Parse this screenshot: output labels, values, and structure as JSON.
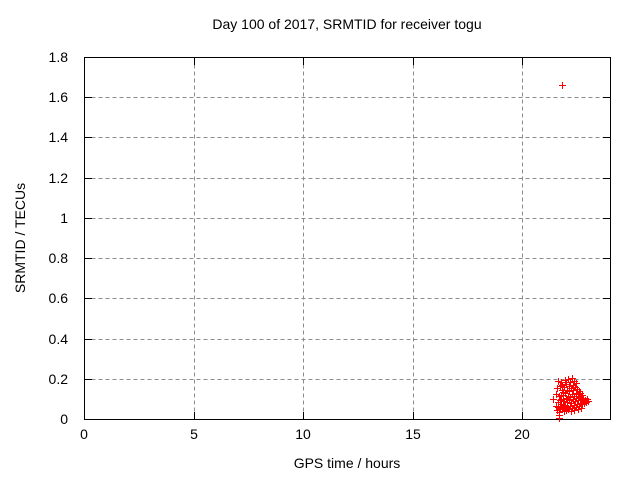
{
  "chart_data": {
    "type": "scatter",
    "title": "Day 100 of 2017, SRMTID for receiver togu",
    "xlabel": "GPS time / hours",
    "ylabel": "SRMTID / TECUs",
    "xlim": [
      0,
      24
    ],
    "ylim": [
      0,
      1.8
    ],
    "xticks": [
      0,
      5,
      10,
      15,
      20
    ],
    "xtick_labels": [
      "0",
      "5",
      "10",
      "15",
      "20"
    ],
    "yticks": [
      0,
      0.2,
      0.4,
      0.6,
      0.8,
      1,
      1.2,
      1.4,
      1.6,
      1.8
    ],
    "ytick_labels": [
      "0",
      "0.2",
      "0.4",
      "0.6",
      "0.8",
      "1",
      "1.2",
      "1.4",
      "1.6",
      "1.8"
    ],
    "grid": true,
    "legend": "none",
    "colors": {
      "marker": "#ff0000",
      "grid": "#8c8c8c",
      "border": "#000000",
      "text": "#000000",
      "background": "#ffffff"
    },
    "series": [
      {
        "name": "SRMTID",
        "marker": "plus",
        "color": "#ff0000",
        "points": [
          [
            21.42,
            0.1
          ],
          [
            21.52,
            0.065
          ],
          [
            21.55,
            0.125
          ],
          [
            21.57,
            0.045
          ],
          [
            21.6,
            0.155
          ],
          [
            21.62,
            0.085
          ],
          [
            21.64,
            0.19
          ],
          [
            21.65,
            0.06
          ],
          [
            21.67,
            0.115
          ],
          [
            21.69,
            0.035
          ],
          [
            21.7,
            0.165
          ],
          [
            21.72,
            0.095
          ],
          [
            21.74,
            0.055
          ],
          [
            21.75,
            0.185
          ],
          [
            21.77,
            0.12
          ],
          [
            21.78,
            0.075
          ],
          [
            21.8,
            0.145
          ],
          [
            21.81,
            0.05
          ],
          [
            21.83,
            0.17
          ],
          [
            21.84,
            0.1
          ],
          [
            21.86,
            0.065
          ],
          [
            21.87,
            0.135
          ],
          [
            21.89,
            0.04
          ],
          [
            21.9,
            0.16
          ],
          [
            21.92,
            0.09
          ],
          [
            21.93,
            0.195
          ],
          [
            21.95,
            0.07
          ],
          [
            21.96,
            0.13
          ],
          [
            21.98,
            0.045
          ],
          [
            21.99,
            0.175
          ],
          [
            22.01,
            0.105
          ],
          [
            22.02,
            0.06
          ],
          [
            22.04,
            0.145
          ],
          [
            22.05,
            0.085
          ],
          [
            22.07,
            0.2
          ],
          [
            22.08,
            0.115
          ],
          [
            22.1,
            0.05
          ],
          [
            22.11,
            0.165
          ],
          [
            22.13,
            0.095
          ],
          [
            22.14,
            0.14
          ],
          [
            22.16,
            0.065
          ],
          [
            22.17,
            0.185
          ],
          [
            22.19,
            0.11
          ],
          [
            22.2,
            0.04
          ],
          [
            22.22,
            0.155
          ],
          [
            22.23,
            0.08
          ],
          [
            22.25,
            0.205
          ],
          [
            22.26,
            0.125
          ],
          [
            22.28,
            0.055
          ],
          [
            22.29,
            0.17
          ],
          [
            22.31,
            0.1
          ],
          [
            22.32,
            0.145
          ],
          [
            22.34,
            0.07
          ],
          [
            22.35,
            0.19
          ],
          [
            22.37,
            0.115
          ],
          [
            22.38,
            0.045
          ],
          [
            22.4,
            0.16
          ],
          [
            22.41,
            0.09
          ],
          [
            22.43,
            0.13
          ],
          [
            22.44,
            0.06
          ],
          [
            22.46,
            0.18
          ],
          [
            22.47,
            0.105
          ],
          [
            22.49,
            0.075
          ],
          [
            22.5,
            0.15
          ],
          [
            22.52,
            0.05
          ],
          [
            22.53,
            0.125
          ],
          [
            22.55,
            0.095
          ],
          [
            22.57,
            0.14
          ],
          [
            22.58,
            0.065
          ],
          [
            22.6,
            0.11
          ],
          [
            22.62,
            0.08
          ],
          [
            22.64,
            0.13
          ],
          [
            22.66,
            0.055
          ],
          [
            22.68,
            0.1
          ],
          [
            22.7,
            0.075
          ],
          [
            22.72,
            0.12
          ],
          [
            22.75,
            0.09
          ],
          [
            22.78,
            0.105
          ],
          [
            22.81,
            0.08
          ],
          [
            22.85,
            0.095
          ],
          [
            22.9,
            0.085
          ],
          [
            22.95,
            0.1
          ],
          [
            23.0,
            0.09
          ],
          [
            21.67,
            0.005
          ],
          [
            21.67,
            0.02
          ],
          [
            21.83,
            1.66
          ]
        ]
      }
    ]
  }
}
